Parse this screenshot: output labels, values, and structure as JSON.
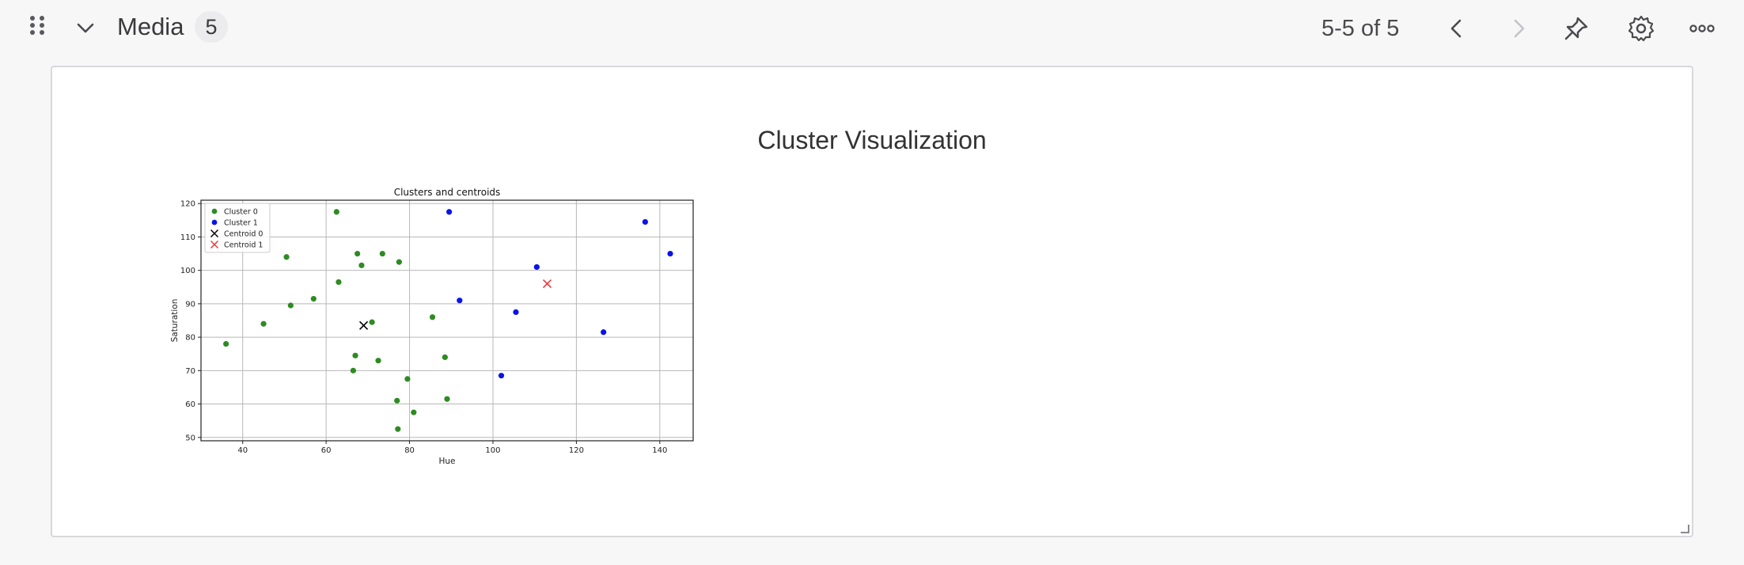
{
  "header": {
    "title": "Media",
    "count": "5",
    "pagination": "5-5 of 5"
  },
  "card": {
    "title": "Cluster Visualization"
  },
  "colors": {
    "cluster0": "#2e8b22",
    "cluster1": "#0a14e6",
    "centroid0": "#000000",
    "centroid1": "#e23b3b"
  },
  "icons": [
    "drag-handle-icon",
    "chevron-down-icon",
    "chevron-left-icon",
    "chevron-right-icon",
    "pin-icon",
    "gear-icon",
    "more-icon",
    "resize-grip-icon"
  ],
  "chart_data": {
    "type": "scatter",
    "title": "Clusters and centroids",
    "xlabel": "Hue",
    "ylabel": "Saturation",
    "xlim": [
      30,
      148
    ],
    "ylim": [
      49,
      121
    ],
    "xticks": [
      40,
      60,
      80,
      100,
      120,
      140
    ],
    "yticks": [
      50,
      60,
      70,
      80,
      90,
      100,
      110,
      120
    ],
    "grid": true,
    "legend_position": "top-left",
    "series": [
      {
        "name": "Cluster 0",
        "marker": "dot",
        "color": "#2e8b22",
        "points": [
          [
            36,
            78
          ],
          [
            45,
            84
          ],
          [
            50.5,
            104
          ],
          [
            51.5,
            89.5
          ],
          [
            57,
            91.5
          ],
          [
            62.5,
            117.5
          ],
          [
            63,
            96.5
          ],
          [
            66.5,
            70
          ],
          [
            67,
            74.5
          ],
          [
            67.5,
            105
          ],
          [
            68.5,
            101.5
          ],
          [
            71,
            84.5
          ],
          [
            72.5,
            73
          ],
          [
            73.5,
            105
          ],
          [
            77,
            61
          ],
          [
            77.2,
            52.5
          ],
          [
            77.5,
            102.5
          ],
          [
            79.5,
            67.5
          ],
          [
            81,
            57.5
          ],
          [
            85.5,
            86
          ],
          [
            88.5,
            74
          ],
          [
            89,
            61.5
          ]
        ]
      },
      {
        "name": "Cluster 1",
        "marker": "dot",
        "color": "#0a14e6",
        "points": [
          [
            89.5,
            117.5
          ],
          [
            92,
            91
          ],
          [
            102,
            68.5
          ],
          [
            105.5,
            87.5
          ],
          [
            110.5,
            101
          ],
          [
            126.5,
            81.5
          ],
          [
            136.5,
            114.5
          ],
          [
            142.5,
            105
          ]
        ]
      },
      {
        "name": "Centroid 0",
        "marker": "x",
        "color": "#000000",
        "points": [
          [
            69,
            83.5
          ]
        ]
      },
      {
        "name": "Centroid 1",
        "marker": "x",
        "color": "#e23b3b",
        "points": [
          [
            113,
            96
          ]
        ]
      }
    ]
  }
}
